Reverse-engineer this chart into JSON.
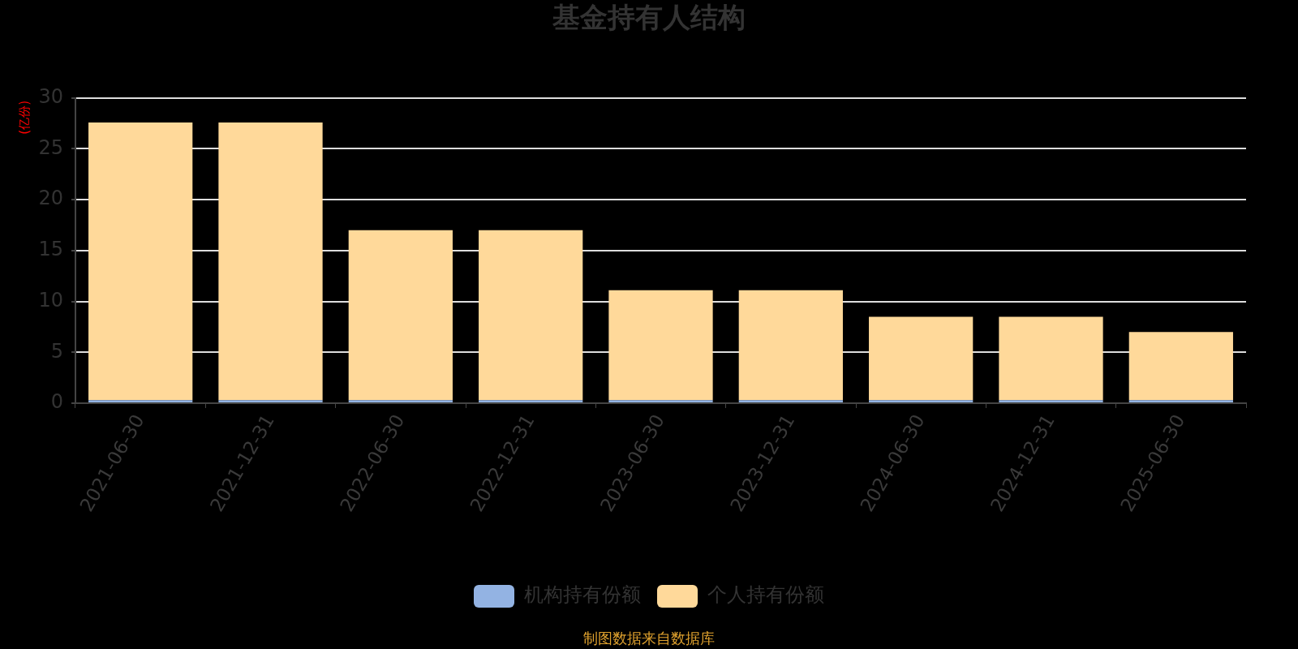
{
  "chart_data": {
    "type": "bar",
    "title": "基金持有人结构",
    "ylabel": "(亿份)",
    "categories": [
      "2021-06-30",
      "2021-12-31",
      "2022-06-30",
      "2022-12-31",
      "2023-06-30",
      "2023-12-31",
      "2024-06-30",
      "2024-12-31",
      "2025-06-30"
    ],
    "stacked": true,
    "series": [
      {
        "name": "机构持有份额",
        "color": "#93b3e3",
        "values": [
          0.3,
          0.3,
          0.3,
          0.3,
          0.3,
          0.3,
          0.3,
          0.3,
          0.3
        ]
      },
      {
        "name": "个人持有份额",
        "color": "#ffd99a",
        "values": [
          27.3,
          27.3,
          16.7,
          16.7,
          10.8,
          10.8,
          8.2,
          8.2,
          6.7
        ]
      }
    ],
    "ylim": [
      0,
      30
    ],
    "yticks": [
      0,
      5,
      10,
      15,
      20,
      25,
      30
    ],
    "grid": "y",
    "legend": "bottom",
    "annotations": [
      "制图数据来自数据库"
    ]
  }
}
